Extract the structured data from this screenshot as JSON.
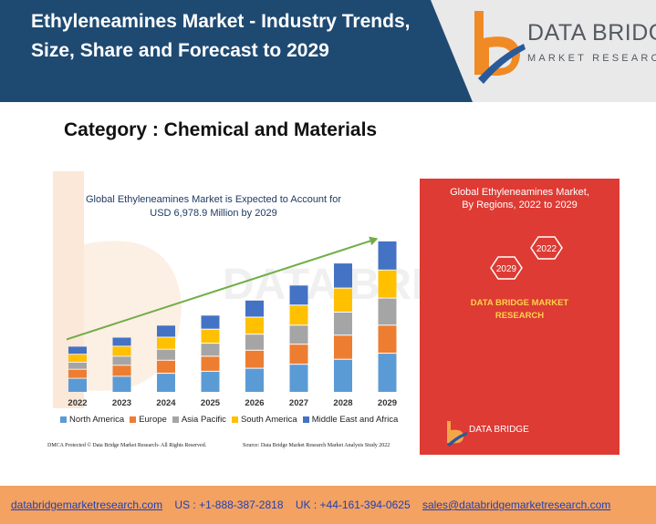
{
  "header": {
    "title": "Ethyleneamines Market - Industry Trends, Size, Share and Forecast to 2029",
    "logo_name": "DATA BRIDGE",
    "logo_tagline": "MARKET RESEARCH"
  },
  "category": "Category : Chemical and Materials",
  "infographic": {
    "title_line1": "Global Ethyleneamines Market is Expected to Account for",
    "title_line2": "USD 6,978.9 Million by 2029",
    "dmca": "DMCA Protected © Data Bridge Market Research- All Rights Reserved.",
    "source": "Source: Data Bridge Market Research Market Analysis Study 2022",
    "colors": {
      "North America": "#5b9bd5",
      "Europe": "#ed7d31",
      "Asia Pacific": "#a5a5a5",
      "South America": "#ffc000",
      "Middle East and Africa": "#4472c4",
      "trend_arrow": "#70ad47"
    },
    "side_panel": {
      "title_line1": "Global Ethyleneamines Market,",
      "title_line2": "By Regions, 2022 to 2029",
      "hex_top": "2022",
      "hex_bottom": "2029",
      "brand_line1": "DATA BRIDGE MARKET",
      "brand_line2": "RESEARCH",
      "small_logo_text": "DATA BRIDGE"
    }
  },
  "chart_data": {
    "type": "bar",
    "stacked": true,
    "categories": [
      "2022",
      "2023",
      "2024",
      "2025",
      "2026",
      "2027",
      "2028",
      "2029"
    ],
    "series": [
      {
        "name": "North America",
        "values": [
          14,
          16,
          19,
          21,
          24,
          28,
          33,
          39
        ]
      },
      {
        "name": "Europe",
        "values": [
          9,
          11,
          13,
          15,
          18,
          20,
          24,
          28
        ]
      },
      {
        "name": "Asia Pacific",
        "values": [
          7,
          9,
          11,
          13,
          16,
          19,
          23,
          27
        ]
      },
      {
        "name": "South America",
        "values": [
          8,
          10,
          12,
          14,
          17,
          20,
          24,
          28
        ]
      },
      {
        "name": "Middle East and Africa",
        "values": [
          8,
          9,
          12,
          14,
          17,
          20,
          25,
          29
        ]
      }
    ],
    "legend": "bottom",
    "grid": false
  },
  "footer": {
    "website": "databridgemarketresearch.com",
    "us_phone": "US : +1-888-387-2818",
    "uk_phone": "UK : +44-161-394-0625",
    "email": "sales@databridgemarketresearch.com"
  }
}
